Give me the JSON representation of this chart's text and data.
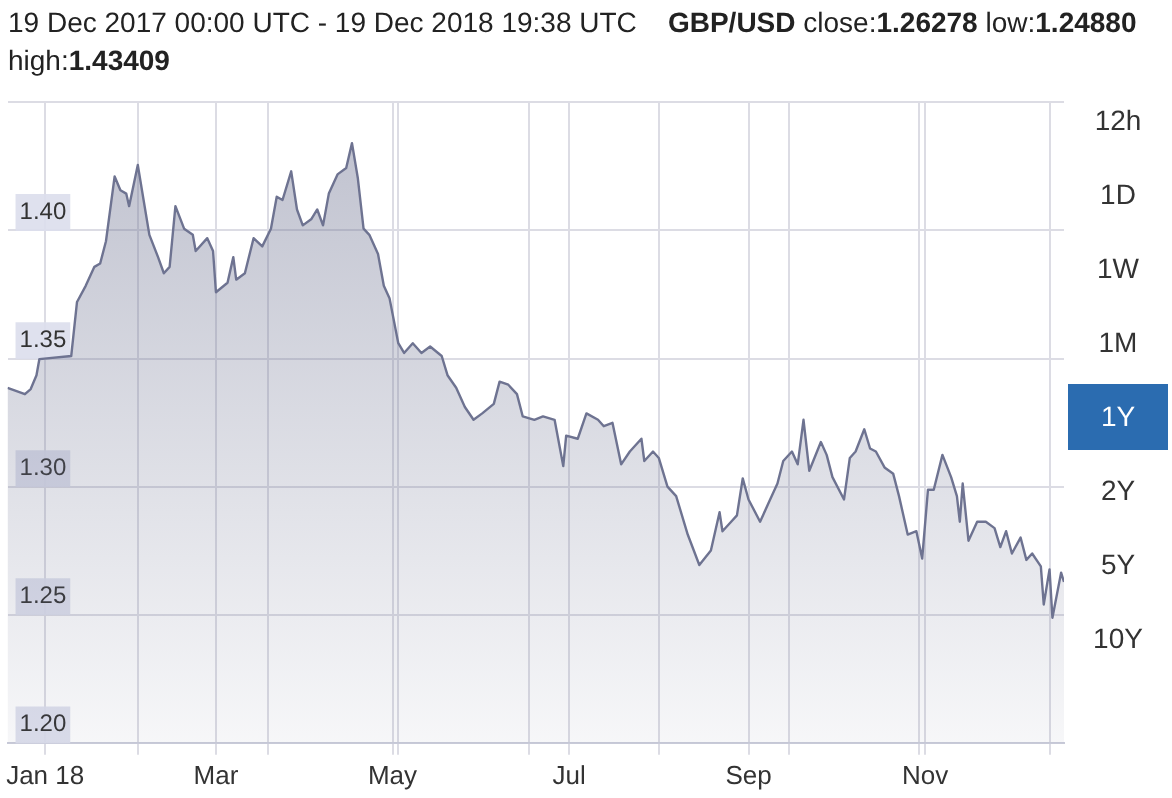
{
  "chart_data": {
    "type": "area",
    "title": "19 Dec 2017 00:00 UTC - 19 Dec 2018 19:38 UTC",
    "subtitle": "GBP/USD close:1.26278 low:1.24880 high:1.43409",
    "annotations": [
      "12h",
      "1D",
      "1W",
      "1M",
      "1Y",
      "2Y",
      "5Y",
      "10Y"
    ],
    "x": [
      "2017-12-19",
      "2017-12-25",
      "2017-12-27",
      "2017-12-29",
      "2017-12-30",
      "2018-01-10",
      "2018-01-12",
      "2018-01-15",
      "2018-01-18",
      "2018-01-20",
      "2018-01-22",
      "2018-01-25",
      "2018-01-27",
      "2018-01-29",
      "2018-01-30",
      "2018-02-02",
      "2018-02-04",
      "2018-02-06",
      "2018-02-09",
      "2018-02-11",
      "2018-02-13",
      "2018-02-15",
      "2018-02-18",
      "2018-02-21",
      "2018-02-22",
      "2018-02-26",
      "2018-02-28",
      "2018-03-01",
      "2018-03-05",
      "2018-03-07",
      "2018-03-08",
      "2018-03-11",
      "2018-03-14",
      "2018-03-17",
      "2018-03-20",
      "2018-03-22",
      "2018-03-24",
      "2018-03-27",
      "2018-03-29",
      "2018-03-31",
      "2018-04-03",
      "2018-04-05",
      "2018-04-07",
      "2018-04-09",
      "2018-04-12",
      "2018-04-15",
      "2018-04-17",
      "2018-04-19",
      "2018-04-21",
      "2018-04-23",
      "2018-04-26",
      "2018-04-28",
      "2018-04-30",
      "2018-05-03",
      "2018-05-05",
      "2018-05-08",
      "2018-05-11",
      "2018-05-14",
      "2018-05-18",
      "2018-05-20",
      "2018-05-23",
      "2018-05-26",
      "2018-05-29",
      "2018-06-01",
      "2018-06-05",
      "2018-06-07",
      "2018-06-10",
      "2018-06-13",
      "2018-06-15",
      "2018-06-19",
      "2018-06-22",
      "2018-06-26",
      "2018-06-29",
      "2018-06-30",
      "2018-07-04",
      "2018-07-07",
      "2018-07-11",
      "2018-07-13",
      "2018-07-16",
      "2018-07-19",
      "2018-07-22",
      "2018-07-26",
      "2018-07-27",
      "2018-07-30",
      "2018-08-01",
      "2018-08-04",
      "2018-08-07",
      "2018-08-11",
      "2018-08-15",
      "2018-08-19",
      "2018-08-22",
      "2018-08-23",
      "2018-08-26",
      "2018-08-28",
      "2018-08-30",
      "2018-09-01",
      "2018-09-05",
      "2018-09-08",
      "2018-09-11",
      "2018-09-13",
      "2018-09-16",
      "2018-09-18",
      "2018-09-20",
      "2018-09-22",
      "2018-09-26",
      "2018-09-28",
      "2018-09-30",
      "2018-10-04",
      "2018-10-06",
      "2018-10-08",
      "2018-10-11",
      "2018-10-13",
      "2018-10-15",
      "2018-10-18",
      "2018-10-21",
      "2018-10-23",
      "2018-10-26",
      "2018-10-29",
      "2018-10-31",
      "2018-11-02",
      "2018-11-04",
      "2018-11-07",
      "2018-11-10",
      "2018-11-12",
      "2018-11-13",
      "2018-11-14",
      "2018-11-16",
      "2018-11-19",
      "2018-11-22",
      "2018-11-25",
      "2018-11-27",
      "2018-11-29",
      "2018-12-01",
      "2018-12-04",
      "2018-12-06",
      "2018-12-08",
      "2018-12-11",
      "2018-12-12",
      "2018-12-14",
      "2018-12-15",
      "2018-12-18",
      "2018-12-19"
    ],
    "series": [
      {
        "color": "#6e7391",
        "values": [
          1.3386,
          1.3361,
          1.3381,
          1.3435,
          1.3498,
          1.351,
          1.3721,
          1.3784,
          1.3858,
          1.3871,
          1.3958,
          1.4211,
          1.4157,
          1.4144,
          1.4095,
          1.4256,
          1.4119,
          1.3983,
          1.3896,
          1.3833,
          1.3858,
          1.4095,
          1.4007,
          1.3983,
          1.392,
          1.397,
          1.392,
          1.3759,
          1.3796,
          1.3896,
          1.3808,
          1.3833,
          1.397,
          1.3938,
          1.4007,
          1.4132,
          1.4119,
          1.4231,
          1.4082,
          1.402,
          1.4045,
          1.4082,
          1.402,
          1.4144,
          1.4219,
          1.4244,
          1.4341,
          1.4206,
          1.4007,
          1.3983,
          1.3908,
          1.3784,
          1.3734,
          1.356,
          1.3522,
          1.356,
          1.3522,
          1.3547,
          1.351,
          1.3435,
          1.3386,
          1.3311,
          1.3261,
          1.3286,
          1.3323,
          1.341,
          1.3398,
          1.3361,
          1.3274,
          1.3261,
          1.3274,
          1.3261,
          1.308,
          1.3199,
          1.3187,
          1.3286,
          1.3261,
          1.3236,
          1.3249,
          1.3087,
          1.3137,
          1.3187,
          1.31,
          1.3137,
          1.3112,
          1.3,
          1.2963,
          1.2813,
          1.2694,
          1.2751,
          1.29,
          1.2826,
          1.2863,
          1.2888,
          1.3032,
          1.295,
          1.2863,
          1.2938,
          1.3012,
          1.31,
          1.3137,
          1.3087,
          1.3261,
          1.3062,
          1.3174,
          1.3124,
          1.3037,
          1.295,
          1.3112,
          1.3137,
          1.3224,
          1.3149,
          1.3137,
          1.3075,
          1.305,
          1.2963,
          1.2813,
          1.2826,
          1.2719,
          1.2988,
          1.2988,
          1.3124,
          1.3037,
          1.2963,
          1.2863,
          1.3012,
          1.2789,
          1.2863,
          1.2863,
          1.2838,
          1.2764,
          1.2826,
          1.2739,
          1.2801,
          1.2714,
          1.2739,
          1.2689,
          1.254,
          1.2677,
          1.2488,
          1.2664,
          1.2628
        ]
      }
    ],
    "xlim": [
      "2017-12-19",
      "2018-12-19"
    ],
    "xticks": [
      {
        "value": "2018-01-01",
        "label": "Jan 18"
      },
      {
        "value": "2018-02-02",
        "label": null
      },
      {
        "value": "2018-03-01",
        "label": "Mar"
      },
      {
        "value": "2018-03-19",
        "label": null
      },
      {
        "value": "2018-05-01",
        "label": "May"
      },
      {
        "value": "2018-05-03",
        "label": null
      },
      {
        "value": "2018-06-17",
        "label": null
      },
      {
        "value": "2018-07-01",
        "label": "Jul"
      },
      {
        "value": "2018-08-01",
        "label": null
      },
      {
        "value": "2018-09-01",
        "label": "Sep"
      },
      {
        "value": "2018-09-15",
        "label": null
      },
      {
        "value": "2018-10-30",
        "label": null
      },
      {
        "value": "2018-11-01",
        "label": "Nov"
      },
      {
        "value": "2018-12-14",
        "label": null
      }
    ],
    "ylim": [
      1.2,
      1.45
    ],
    "yticks": [
      {
        "value": 1.2,
        "label": "1.20"
      },
      {
        "value": 1.25,
        "label": "1.25"
      },
      {
        "value": 1.3,
        "label": "1.30"
      },
      {
        "value": 1.35,
        "label": "1.35"
      },
      {
        "value": 1.4,
        "label": "1.40"
      },
      {
        "value": 1.45,
        "label": null
      }
    ],
    "grid": true,
    "legend": false,
    "marker": "none",
    "line_style": "solid"
  }
}
